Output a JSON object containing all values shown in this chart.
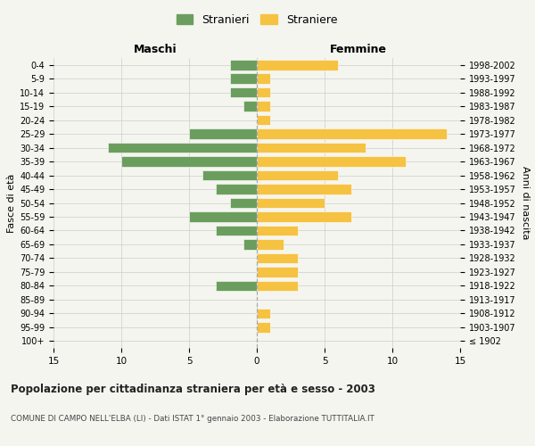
{
  "age_groups": [
    "100+",
    "95-99",
    "90-94",
    "85-89",
    "80-84",
    "75-79",
    "70-74",
    "65-69",
    "60-64",
    "55-59",
    "50-54",
    "45-49",
    "40-44",
    "35-39",
    "30-34",
    "25-29",
    "20-24",
    "15-19",
    "10-14",
    "5-9",
    "0-4"
  ],
  "birth_years": [
    "≤ 1902",
    "1903-1907",
    "1908-1912",
    "1913-1917",
    "1918-1922",
    "1923-1927",
    "1928-1932",
    "1933-1937",
    "1938-1942",
    "1943-1947",
    "1948-1952",
    "1953-1957",
    "1958-1962",
    "1963-1967",
    "1968-1972",
    "1973-1977",
    "1978-1982",
    "1983-1987",
    "1988-1992",
    "1993-1997",
    "1998-2002"
  ],
  "males": [
    0,
    0,
    0,
    0,
    3,
    0,
    0,
    1,
    3,
    5,
    2,
    3,
    4,
    10,
    11,
    5,
    0,
    1,
    2,
    2,
    2
  ],
  "females": [
    0,
    1,
    1,
    0,
    3,
    3,
    3,
    2,
    3,
    7,
    5,
    7,
    6,
    11,
    8,
    14,
    1,
    1,
    1,
    1,
    6
  ],
  "male_color": "#6b9e5e",
  "female_color": "#f5c242",
  "background_color": "#f5f5f0",
  "title": "Popolazione per cittadinanza straniera per età e sesso - 2003",
  "subtitle": "COMUNE DI CAMPO NELL'ELBA (LI) - Dati ISTAT 1° gennaio 2003 - Elaborazione TUTTITALIA.IT",
  "legend_male": "Stranieri",
  "legend_female": "Straniere",
  "xlabel_left": "Maschi",
  "xlabel_right": "Femmine",
  "ylabel_left": "Fasce di età",
  "ylabel_right": "Anni di nascita",
  "xmax": 15,
  "grid_color": "#cccccc"
}
